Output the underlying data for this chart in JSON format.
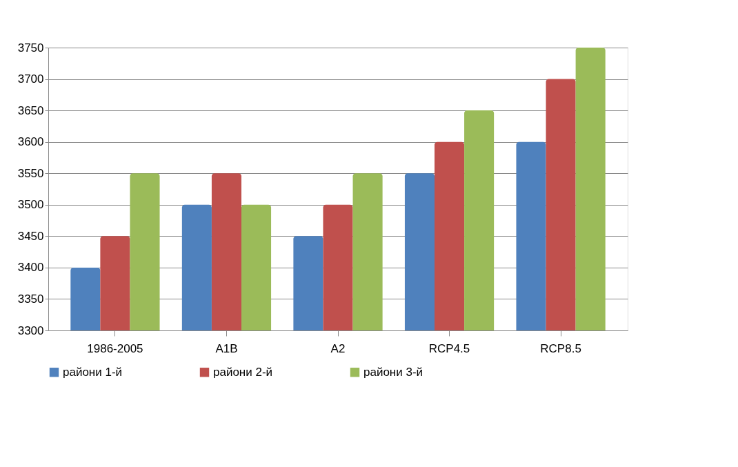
{
  "chart_data": {
    "type": "bar",
    "categories": [
      "1986-2005",
      "A1B",
      "A2",
      "RCP4.5",
      "RCP8.5"
    ],
    "series": [
      {
        "name": "райони 1-й",
        "color": "#4f81bd",
        "values": [
          3400,
          3500,
          3450,
          3550,
          3600
        ]
      },
      {
        "name": "райони 2-й",
        "color": "#c0504d",
        "values": [
          3450,
          3550,
          3500,
          3600,
          3700
        ]
      },
      {
        "name": "райони 3-й",
        "color": "#9bbb59",
        "values": [
          3550,
          3500,
          3550,
          3650,
          3750
        ]
      }
    ],
    "ylim": [
      3300,
      3750
    ],
    "yticks": [
      3300,
      3350,
      3400,
      3450,
      3500,
      3550,
      3600,
      3650,
      3700,
      3750
    ],
    "grid": "y",
    "legend": "bottom"
  }
}
